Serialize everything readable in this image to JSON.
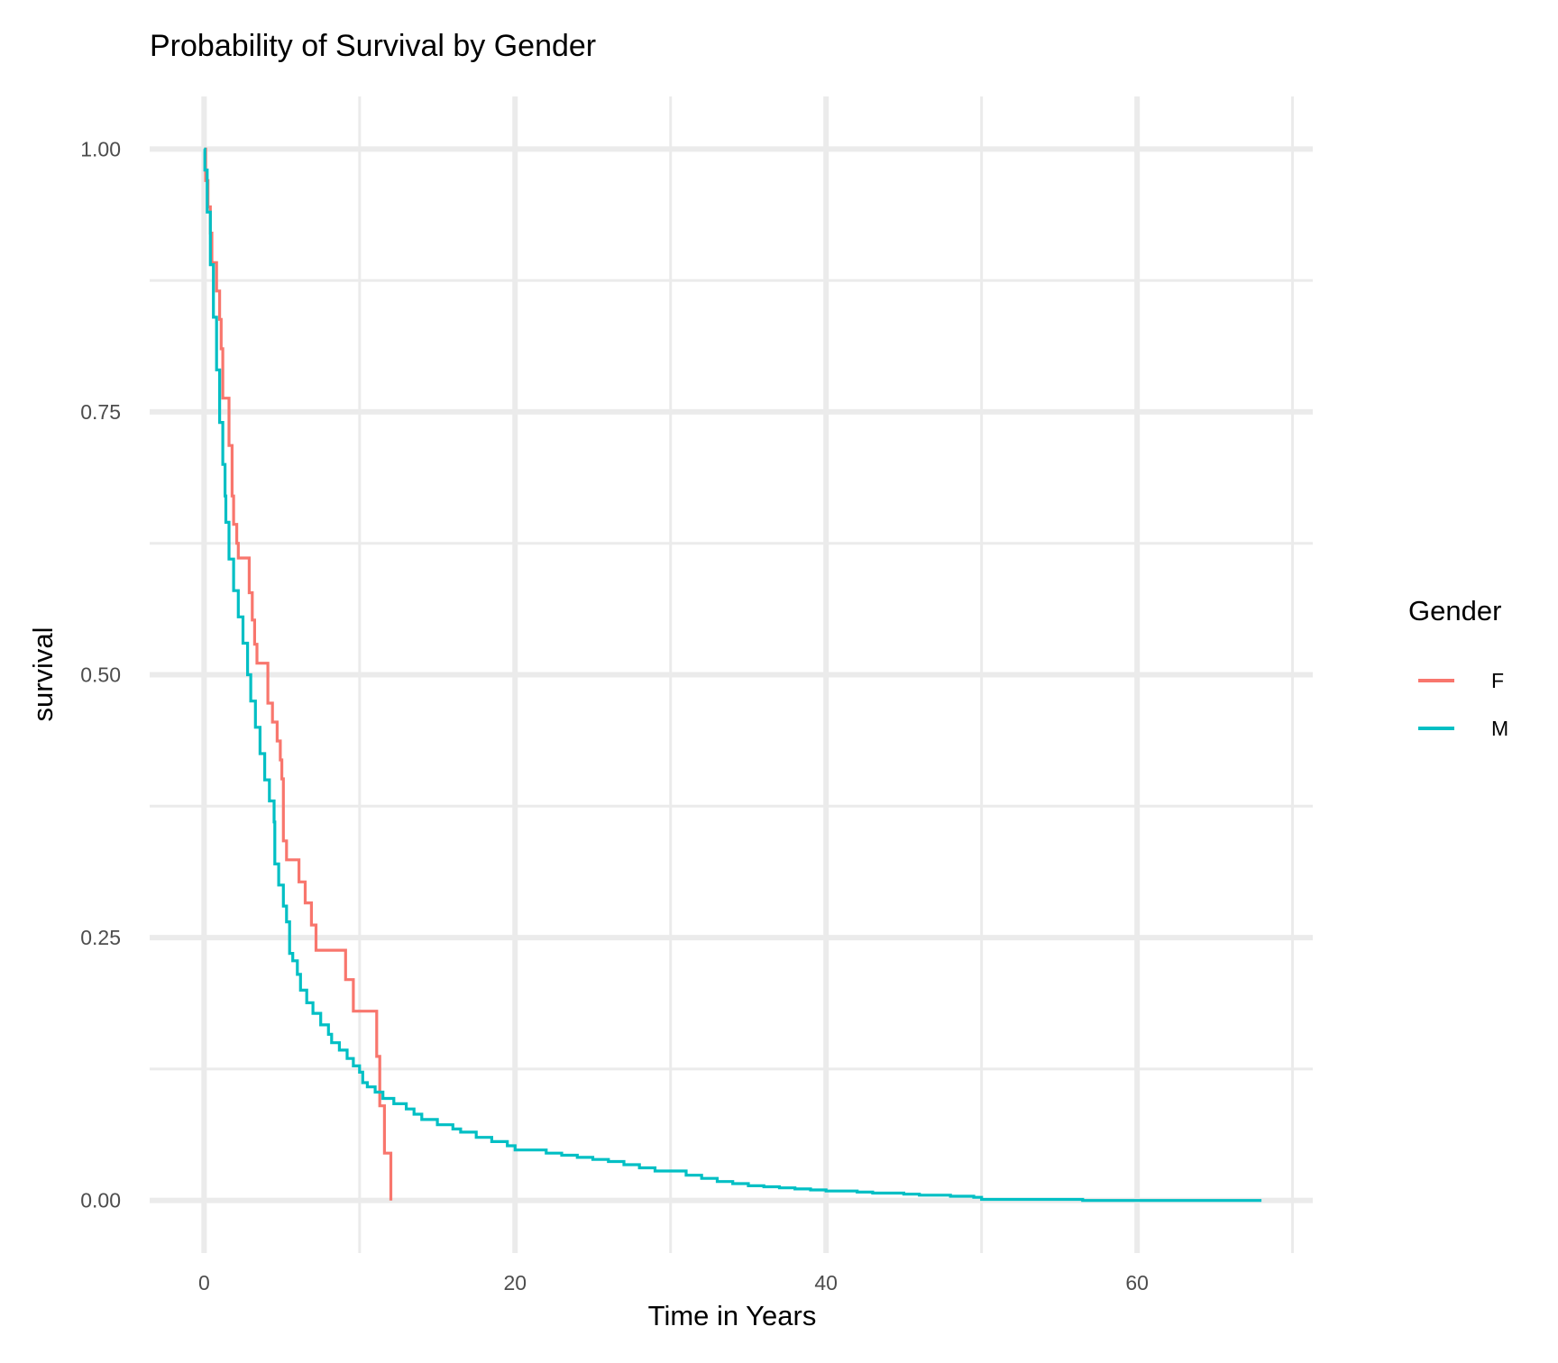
{
  "chart_data": {
    "type": "line",
    "step": true,
    "title": "Probability of Survival by Gender",
    "xlabel": "Time in Years",
    "ylabel": "survival",
    "xlim": [
      -3.5,
      71.3
    ],
    "ylim": [
      -0.05,
      1.05
    ],
    "x_ticks": [
      0,
      20,
      40,
      60
    ],
    "x_tick_labels": [
      "0",
      "20",
      "40",
      "60"
    ],
    "x_minor_ticks": [
      10,
      30,
      50,
      70
    ],
    "y_ticks": [
      0,
      0.25,
      0.5,
      0.75,
      1.0
    ],
    "y_tick_labels": [
      "0.00",
      "0.25",
      "0.50",
      "0.75",
      "1.00"
    ],
    "y_minor_ticks": [
      0.125,
      0.375,
      0.625,
      0.875
    ],
    "grid": true,
    "legend": {
      "title": "Gender",
      "position": "right"
    },
    "series": [
      {
        "name": "F",
        "color": "#F8766D",
        "points": [
          [
            0,
            1.0
          ],
          [
            0.1,
            0.97
          ],
          [
            0.25,
            0.945
          ],
          [
            0.4,
            0.92
          ],
          [
            0.5,
            0.892
          ],
          [
            0.8,
            0.865
          ],
          [
            1.0,
            0.838
          ],
          [
            1.1,
            0.81
          ],
          [
            1.2,
            0.763
          ],
          [
            1.5,
            0.763
          ],
          [
            1.6,
            0.718
          ],
          [
            1.8,
            0.67
          ],
          [
            1.9,
            0.643
          ],
          [
            2.1,
            0.625
          ],
          [
            2.2,
            0.611
          ],
          [
            2.8,
            0.611
          ],
          [
            2.9,
            0.578
          ],
          [
            3.1,
            0.552
          ],
          [
            3.25,
            0.529
          ],
          [
            3.4,
            0.511
          ],
          [
            4.0,
            0.511
          ],
          [
            4.1,
            0.473
          ],
          [
            4.4,
            0.455
          ],
          [
            4.7,
            0.437
          ],
          [
            4.9,
            0.419
          ],
          [
            5.0,
            0.401
          ],
          [
            5.1,
            0.342
          ],
          [
            5.3,
            0.324
          ],
          [
            6.0,
            0.324
          ],
          [
            6.1,
            0.303
          ],
          [
            6.5,
            0.283
          ],
          [
            6.9,
            0.262
          ],
          [
            7.2,
            0.238
          ],
          [
            9.0,
            0.238
          ],
          [
            9.1,
            0.21
          ],
          [
            9.6,
            0.18
          ],
          [
            11.0,
            0.18
          ],
          [
            11.1,
            0.137
          ],
          [
            11.3,
            0.09
          ],
          [
            11.6,
            0.045
          ],
          [
            12.0,
            0.045
          ],
          [
            12.01,
            0.0
          ]
        ]
      },
      {
        "name": "M",
        "color": "#00BFC4",
        "points": [
          [
            0,
            1.0
          ],
          [
            0.05,
            0.98
          ],
          [
            0.2,
            0.94
          ],
          [
            0.4,
            0.89
          ],
          [
            0.6,
            0.84
          ],
          [
            0.8,
            0.79
          ],
          [
            1.0,
            0.74
          ],
          [
            1.2,
            0.7
          ],
          [
            1.35,
            0.67
          ],
          [
            1.4,
            0.645
          ],
          [
            1.6,
            0.61
          ],
          [
            1.9,
            0.58
          ],
          [
            2.2,
            0.555
          ],
          [
            2.5,
            0.53
          ],
          [
            2.8,
            0.5
          ],
          [
            3.0,
            0.475
          ],
          [
            3.3,
            0.45
          ],
          [
            3.6,
            0.425
          ],
          [
            3.9,
            0.4
          ],
          [
            4.2,
            0.38
          ],
          [
            4.5,
            0.36
          ],
          [
            4.55,
            0.32
          ],
          [
            4.8,
            0.3
          ],
          [
            5.1,
            0.28
          ],
          [
            5.3,
            0.265
          ],
          [
            5.5,
            0.235
          ],
          [
            5.7,
            0.228
          ],
          [
            6.0,
            0.215
          ],
          [
            6.2,
            0.2
          ],
          [
            6.6,
            0.188
          ],
          [
            7.0,
            0.178
          ],
          [
            7.5,
            0.167
          ],
          [
            8.0,
            0.158
          ],
          [
            8.2,
            0.15
          ],
          [
            8.7,
            0.143
          ],
          [
            9.2,
            0.135
          ],
          [
            9.6,
            0.128
          ],
          [
            10.0,
            0.122
          ],
          [
            10.2,
            0.112
          ],
          [
            10.5,
            0.108
          ],
          [
            11.0,
            0.103
          ],
          [
            11.5,
            0.097
          ],
          [
            12.2,
            0.092
          ],
          [
            13.0,
            0.087
          ],
          [
            13.5,
            0.082
          ],
          [
            14.0,
            0.077
          ],
          [
            15.0,
            0.072
          ],
          [
            16.0,
            0.068
          ],
          [
            16.5,
            0.065
          ],
          [
            17.5,
            0.06
          ],
          [
            18.5,
            0.056
          ],
          [
            19.5,
            0.052
          ],
          [
            20.0,
            0.048
          ],
          [
            21.5,
            0.048
          ],
          [
            22.0,
            0.045
          ],
          [
            23.0,
            0.043
          ],
          [
            24.0,
            0.041
          ],
          [
            25.0,
            0.039
          ],
          [
            26.0,
            0.037
          ],
          [
            27.0,
            0.034
          ],
          [
            28.0,
            0.031
          ],
          [
            29.0,
            0.028
          ],
          [
            30.0,
            0.028
          ],
          [
            31.0,
            0.024
          ],
          [
            32.0,
            0.021
          ],
          [
            33.0,
            0.018
          ],
          [
            34.0,
            0.016
          ],
          [
            35.0,
            0.014
          ],
          [
            36.0,
            0.013
          ],
          [
            37.0,
            0.012
          ],
          [
            38.0,
            0.011
          ],
          [
            39.0,
            0.01
          ],
          [
            40.0,
            0.009
          ],
          [
            42.0,
            0.008
          ],
          [
            43.0,
            0.007
          ],
          [
            45.0,
            0.006
          ],
          [
            46.0,
            0.005
          ],
          [
            48.0,
            0.004
          ],
          [
            49.5,
            0.003
          ],
          [
            50.0,
            0.001
          ],
          [
            56.5,
            0.0
          ],
          [
            68.0,
            0.0
          ]
        ]
      }
    ]
  }
}
